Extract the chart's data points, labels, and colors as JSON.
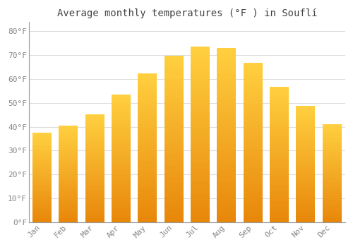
{
  "title": "Average monthly temperatures (°F ) in Souflí",
  "months": [
    "Jan",
    "Feb",
    "Mar",
    "Apr",
    "May",
    "Jun",
    "Jul",
    "Aug",
    "Sep",
    "Oct",
    "Nov",
    "Dec"
  ],
  "values": [
    37.4,
    40.5,
    45.1,
    53.6,
    62.4,
    69.8,
    73.6,
    73.0,
    66.7,
    56.8,
    48.9,
    41.2
  ],
  "bar_color_bottom": "#E8870A",
  "bar_color_top": "#FFD040",
  "bar_edge_color": "#ffffff",
  "background_color": "#ffffff",
  "plot_bg_color": "#ffffff",
  "grid_color": "#dddddd",
  "tick_label_color": "#888888",
  "title_color": "#444444",
  "ytick_labels": [
    "0°F",
    "10°F",
    "20°F",
    "30°F",
    "40°F",
    "50°F",
    "60°F",
    "70°F",
    "80°F"
  ],
  "ytick_values": [
    0,
    10,
    20,
    30,
    40,
    50,
    60,
    70,
    80
  ],
  "ylim": [
    0,
    84
  ],
  "title_fontsize": 10,
  "tick_fontsize": 8,
  "bar_width": 0.72
}
